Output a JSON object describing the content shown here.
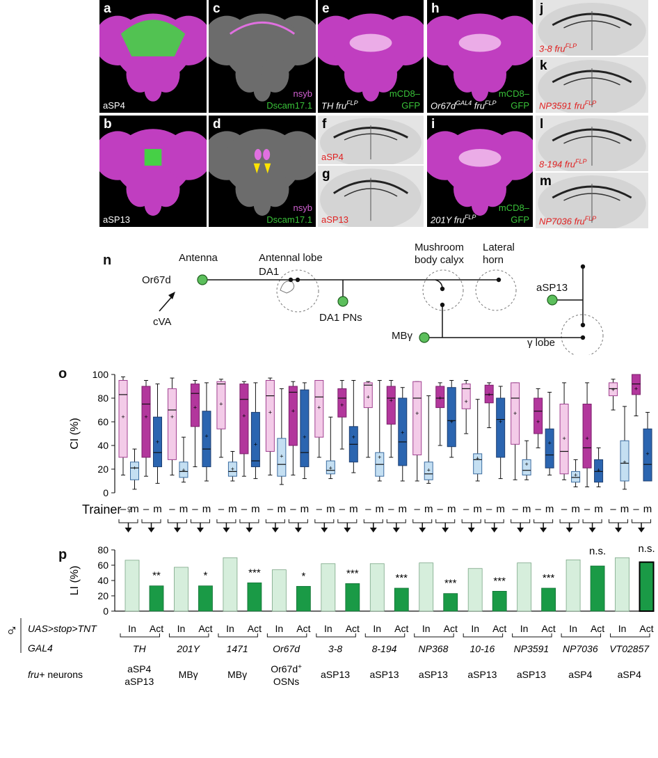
{
  "panels": [
    {
      "id": "a",
      "label": "a",
      "caption": "aSP4"
    },
    {
      "id": "b",
      "label": "b",
      "caption": "aSP13"
    },
    {
      "id": "c",
      "label": "c",
      "line1": "nsyb",
      "line2": "Dscam17.1"
    },
    {
      "id": "d",
      "label": "d",
      "line1": "nsyb",
      "line2": "Dscam17.1"
    },
    {
      "id": "e",
      "label": "e",
      "caption": "TH fru",
      "sup": "FLP",
      "line1": "mCD8–",
      "line2": "GFP"
    },
    {
      "id": "f",
      "label": "f",
      "caption": "aSP4"
    },
    {
      "id": "g",
      "label": "g",
      "caption": "aSP13"
    },
    {
      "id": "h",
      "label": "h",
      "caption": "Or67d",
      "sup_mid": "GAL4",
      "caption2": "fru",
      "sup": "FLP",
      "line1": "mCD8–",
      "line2": "GFP"
    },
    {
      "id": "i",
      "label": "i",
      "caption": "201Y fru",
      "sup": "FLP",
      "line1": "mCD8–",
      "line2": "GFP"
    },
    {
      "id": "j",
      "label": "j",
      "caption": "3-8 fru",
      "sup": "FLP"
    },
    {
      "id": "k",
      "label": "k",
      "caption": "NP3591 fru",
      "sup": "FLP"
    },
    {
      "id": "l",
      "label": "l",
      "caption": "8-194 fru",
      "sup": "FLP"
    },
    {
      "id": "m",
      "label": "m",
      "caption": "NP7036 fru",
      "sup": "FLP"
    }
  ],
  "diagram": {
    "label": "n",
    "antenna": "Antenna",
    "antennal_lobe": "Antennal lobe",
    "mb_calyx_1": "Mushroom",
    "mb_calyx_2": "body calyx",
    "lh_1": "Lateral",
    "lh_2": "horn",
    "or67d": "Or67d",
    "da1": "DA1",
    "da1_pns": "DA1 PNs",
    "cva": "cVA",
    "asp13": "aSP13",
    "mbg": "MBγ",
    "globe": "γ lobe"
  },
  "trainer": {
    "label": "Trainer ♀",
    "dash": "–",
    "m": "m"
  },
  "male_symbol": "♂",
  "uas_label": "UAS>stop>TNT",
  "gal4_label": "GAL4",
  "fru_label_a": "fru",
  "fru_label_b": "+ neurons",
  "genotypes": [
    {
      "gal4": "TH",
      "fru": [
        "aSP4",
        "aSP13"
      ],
      "sig": "**"
    },
    {
      "gal4": "201Y",
      "fru": [
        "MBγ"
      ],
      "sig": "*"
    },
    {
      "gal4": "1471",
      "fru": [
        "MBγ"
      ],
      "sig": "***"
    },
    {
      "gal4": "Or67d",
      "fru": [
        "Or67d+",
        "OSNs"
      ],
      "sig": "*"
    },
    {
      "gal4": "3-8",
      "fru": [
        "aSP13"
      ],
      "sig": "***"
    },
    {
      "gal4": "8-194",
      "fru": [
        "aSP13"
      ],
      "sig": "***"
    },
    {
      "gal4": "NP368",
      "fru": [
        "aSP13"
      ],
      "sig": "***"
    },
    {
      "gal4": "10-16",
      "fru": [
        "aSP13"
      ],
      "sig": "***"
    },
    {
      "gal4": "NP3591",
      "fru": [
        "aSP13"
      ],
      "sig": "***"
    },
    {
      "gal4": "NP7036",
      "fru": [
        "aSP4"
      ],
      "sig": "n.s."
    },
    {
      "gal4": "VT02857",
      "fru": [
        "aSP4"
      ],
      "sig": "n.s."
    }
  ],
  "cond_labels": {
    "in": "In",
    "act": "Act"
  },
  "chart_data": [
    {
      "label": "o",
      "type": "box",
      "ylabel": "CI (%)",
      "ylim": [
        0,
        100
      ],
      "yticks": [
        0,
        20,
        40,
        60,
        80,
        100
      ],
      "note": "Per genotype: In –, In m, Act –, Act m. Box = [whisker_low, q1, median, q3, whisker_high, mean]",
      "boxes": [
        [
          15,
          30,
          83,
          95,
          98,
          64
        ],
        [
          3,
          11,
          21,
          26,
          37,
          21
        ],
        [
          14,
          30,
          75,
          90,
          95,
          64
        ],
        [
          8,
          22,
          34,
          64,
          92,
          43
        ],
        [
          15,
          28,
          70,
          88,
          97,
          64
        ],
        [
          9,
          13,
          18,
          26,
          47,
          19
        ],
        [
          22,
          56,
          84,
          92,
          95,
          72
        ],
        [
          10,
          22,
          37,
          69,
          93,
          48
        ],
        [
          30,
          54,
          92,
          94,
          96,
          75
        ],
        [
          10,
          14,
          18,
          26,
          35,
          20
        ],
        [
          14,
          33,
          79,
          92,
          94,
          65
        ],
        [
          12,
          22,
          27,
          68,
          93,
          41
        ],
        [
          15,
          35,
          82,
          95,
          97,
          68
        ],
        [
          7,
          14,
          24,
          46,
          88,
          31
        ],
        [
          15,
          40,
          85,
          90,
          94,
          69
        ],
        [
          12,
          22,
          34,
          87,
          93,
          47
        ],
        [
          30,
          47,
          81,
          95,
          95,
          72
        ],
        [
          12,
          16,
          19,
          27,
          64,
          21
        ],
        [
          37,
          64,
          80,
          88,
          95,
          74
        ],
        [
          17,
          26,
          41,
          56,
          95,
          47
        ],
        [
          30,
          72,
          91,
          93,
          94,
          81
        ],
        [
          10,
          14,
          24,
          34,
          95,
          30
        ],
        [
          30,
          58,
          80,
          90,
          95,
          78
        ],
        [
          10,
          23,
          43,
          80,
          89,
          51
        ],
        [
          10,
          32,
          80,
          94,
          94,
          67
        ],
        [
          8,
          11,
          16,
          26,
          82,
          19
        ],
        [
          40,
          72,
          80,
          90,
          93,
          80
        ],
        [
          30,
          39,
          61,
          89,
          95,
          60
        ],
        [
          50,
          71,
          88,
          92,
          95,
          77
        ],
        [
          10,
          16,
          28,
          33,
          79,
          29
        ],
        [
          55,
          76,
          83,
          91,
          93,
          83
        ],
        [
          12,
          30,
          62,
          80,
          90,
          60
        ],
        [
          11,
          41,
          80,
          93,
          93,
          67
        ],
        [
          11,
          15,
          19,
          28,
          44,
          24
        ],
        [
          38,
          50,
          69,
          80,
          88,
          60
        ],
        [
          15,
          21,
          32,
          54,
          85,
          42
        ],
        [
          11,
          16,
          35,
          75,
          93,
          46
        ],
        [
          5,
          9,
          13,
          18,
          28,
          15
        ],
        [
          5,
          21,
          38,
          75,
          93,
          46
        ],
        [
          5,
          9,
          18,
          28,
          38,
          19
        ],
        [
          70,
          82,
          88,
          93,
          96,
          87
        ],
        [
          3,
          10,
          25,
          44,
          73,
          26
        ],
        [
          65,
          83,
          92,
          100,
          100,
          88
        ],
        [
          10,
          10,
          24,
          54,
          68,
          33
        ]
      ]
    },
    {
      "label": "p",
      "type": "bar",
      "ylabel": "LI (%)",
      "ylim": [
        0,
        80
      ],
      "yticks": [
        0,
        20,
        40,
        60,
        80
      ],
      "series": [
        {
          "name": "In",
          "values": [
            66.5,
            57.3,
            69.8,
            54,
            62,
            62,
            63,
            55.7,
            63,
            67,
            69.8
          ]
        },
        {
          "name": "Act",
          "values": [
            33,
            33,
            37,
            32.4,
            36,
            30,
            23,
            26,
            30,
            59,
            64
          ]
        }
      ]
    }
  ],
  "colors": {
    "magenta": "#b2379c",
    "lightpink": "#f3cbe8",
    "blue": "#2b65b0",
    "lightblue": "#c4dff2",
    "lightgreen": "#d6eedc",
    "green": "#1a9a46",
    "brainbg": "#000000",
    "brainmagenta": "#c03ec0"
  }
}
